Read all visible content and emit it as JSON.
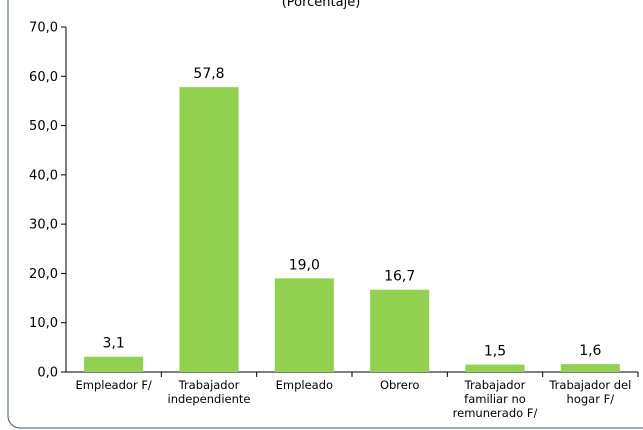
{
  "chart_data": {
    "type": "bar",
    "title": "(Porcentaje)",
    "xlabel": "",
    "ylabel": "",
    "categories": [
      [
        "Empleador F/"
      ],
      [
        "Trabajador",
        "independiente"
      ],
      [
        "Empleado"
      ],
      [
        "Obrero"
      ],
      [
        "Trabajador",
        "familiar no",
        "remunerado F/"
      ],
      [
        "Trabajador del",
        "hogar F/"
      ]
    ],
    "values": [
      3.1,
      57.8,
      19.0,
      16.7,
      1.5,
      1.6
    ],
    "value_labels": [
      "3,1",
      "57,8",
      "19,0",
      "16,7",
      "1,5",
      "1,6"
    ],
    "ylim": [
      0,
      70
    ],
    "yticks": [
      0,
      10,
      20,
      30,
      40,
      50,
      60,
      70
    ],
    "ytick_labels": [
      "0,0",
      "10,0",
      "20,0",
      "30,0",
      "40,0",
      "50,0",
      "60,0",
      "70,0"
    ],
    "grid": false,
    "legend": "none",
    "colors": {
      "bar": "#92d050",
      "axis": "#000000",
      "frame": "#44546a"
    }
  }
}
